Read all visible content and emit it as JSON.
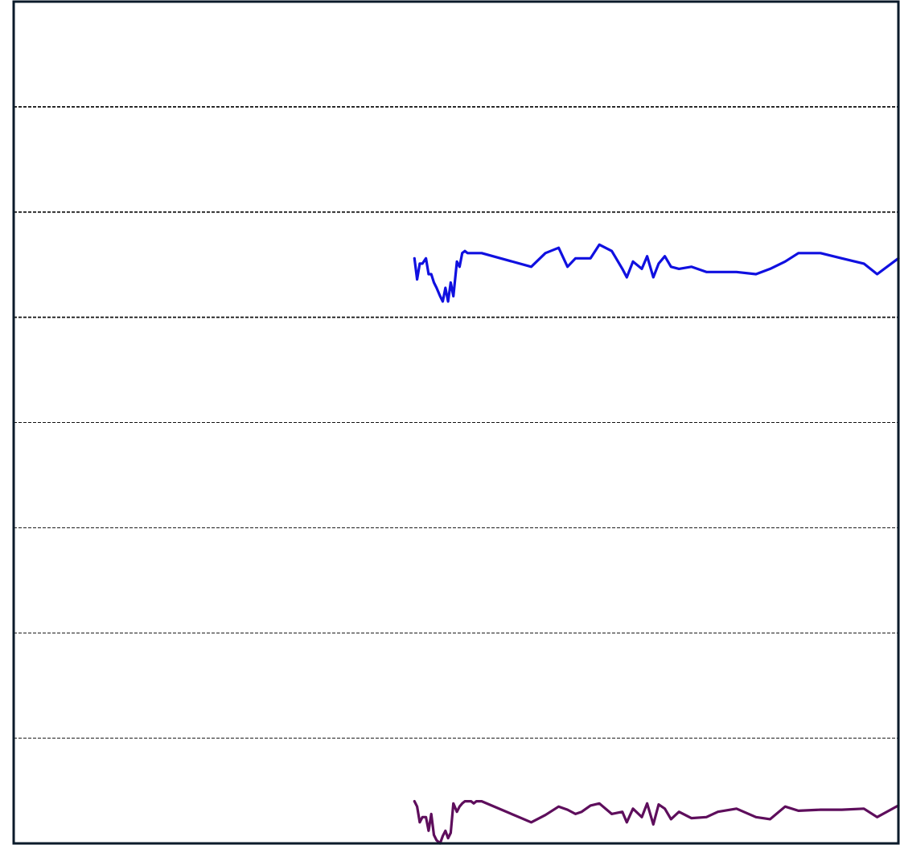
{
  "chart_data": {
    "type": "line",
    "title": "",
    "xlabel": "",
    "ylabel": "",
    "grid": true,
    "legend": "none",
    "xlim": [
      0,
      100
    ],
    "ylim": [
      0,
      8
    ],
    "gridlines_y": [
      1,
      2,
      3,
      4,
      5,
      6,
      7
    ],
    "series": [
      {
        "color": "#1010e0",
        "x": [
          45.3,
          45.6,
          45.9,
          46.2,
          46.6,
          46.9,
          47.2,
          47.5,
          47.8,
          48.2,
          48.5,
          48.8,
          49.1,
          49.4,
          49.7,
          50.1,
          50.4,
          50.7,
          51.0,
          51.3,
          51.7,
          52.0,
          52.3,
          52.6,
          52.9,
          58.5,
          60.1,
          61.6,
          62.6,
          63.5,
          64.2,
          65.2,
          66.2,
          67.6,
          68.8,
          69.3,
          70.0,
          71.0,
          71.6,
          72.3,
          72.9,
          73.6,
          74.3,
          75.2,
          76.6,
          78.3,
          79.6,
          81.7,
          83.9,
          85.5,
          87.2,
          88.7,
          91.2,
          93.6,
          96.1,
          97.6,
          100.0
        ],
        "y": [
          5.56,
          5.36,
          5.51,
          5.51,
          5.56,
          5.41,
          5.41,
          5.33,
          5.28,
          5.2,
          5.15,
          5.28,
          5.15,
          5.33,
          5.2,
          5.53,
          5.48,
          5.61,
          5.63,
          5.61,
          5.61,
          5.61,
          5.61,
          5.61,
          5.61,
          5.48,
          5.61,
          5.66,
          5.48,
          5.56,
          5.56,
          5.56,
          5.69,
          5.63,
          5.46,
          5.38,
          5.53,
          5.46,
          5.58,
          5.38,
          5.51,
          5.58,
          5.48,
          5.46,
          5.48,
          5.43,
          5.43,
          5.43,
          5.41,
          5.46,
          5.53,
          5.61,
          5.61,
          5.56,
          5.51,
          5.41,
          5.56
        ]
      },
      {
        "color": "#5e0e5c",
        "x": [
          45.3,
          45.6,
          45.9,
          46.2,
          46.6,
          46.9,
          47.2,
          47.5,
          47.8,
          48.2,
          48.5,
          48.8,
          49.1,
          49.4,
          49.7,
          50.1,
          50.4,
          50.7,
          51.0,
          51.3,
          51.7,
          52.0,
          52.3,
          52.6,
          52.9,
          58.5,
          60.1,
          61.6,
          62.6,
          63.5,
          64.2,
          65.2,
          66.2,
          67.6,
          68.8,
          69.3,
          70.0,
          71.0,
          71.6,
          72.3,
          72.9,
          73.6,
          74.3,
          75.2,
          76.6,
          78.3,
          79.6,
          81.7,
          83.9,
          85.5,
          87.2,
          88.7,
          91.2,
          93.6,
          96.1,
          97.6,
          100.0
        ],
        "y": [
          0.4,
          0.35,
          0.2,
          0.25,
          0.25,
          0.12,
          0.28,
          0.08,
          0.03,
          0.0,
          0.07,
          0.12,
          0.05,
          0.1,
          0.38,
          0.3,
          0.35,
          0.38,
          0.4,
          0.4,
          0.4,
          0.38,
          0.4,
          0.4,
          0.4,
          0.2,
          0.27,
          0.35,
          0.32,
          0.28,
          0.3,
          0.36,
          0.38,
          0.28,
          0.3,
          0.2,
          0.33,
          0.25,
          0.38,
          0.18,
          0.37,
          0.33,
          0.23,
          0.3,
          0.24,
          0.25,
          0.3,
          0.33,
          0.25,
          0.23,
          0.35,
          0.31,
          0.32,
          0.32,
          0.33,
          0.25,
          0.36
        ]
      }
    ]
  }
}
